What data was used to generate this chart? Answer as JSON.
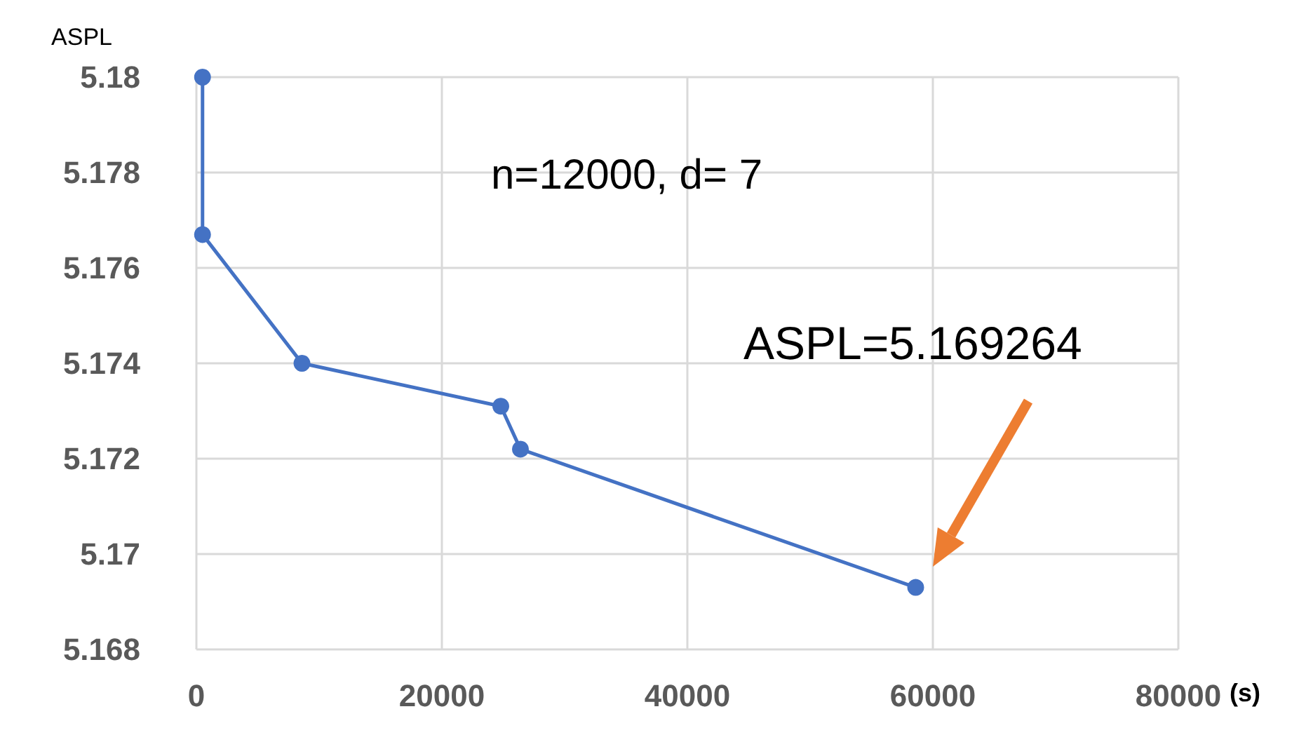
{
  "chart_data": {
    "type": "line",
    "ylabel": "ASPL",
    "xlabel": "(s)",
    "x": [
      500,
      500,
      8600,
      24800,
      26400,
      58600
    ],
    "series": [
      {
        "color": "#4472c4",
        "values": [
          5.18,
          5.1767,
          5.174,
          5.1731,
          5.1722,
          5.1693
        ]
      }
    ],
    "xlim": [
      0,
      80000
    ],
    "xticks": [
      0,
      20000,
      40000,
      60000,
      80000
    ],
    "ylim": [
      5.168,
      5.18
    ],
    "yticks": [
      5.168,
      5.17,
      5.172,
      5.174,
      5.176,
      5.178,
      5.18
    ],
    "grid": true,
    "marker": "circle",
    "line_style": "solid",
    "annotations": [
      "n=12000, d= 7",
      "ASPL=5.169264"
    ]
  }
}
